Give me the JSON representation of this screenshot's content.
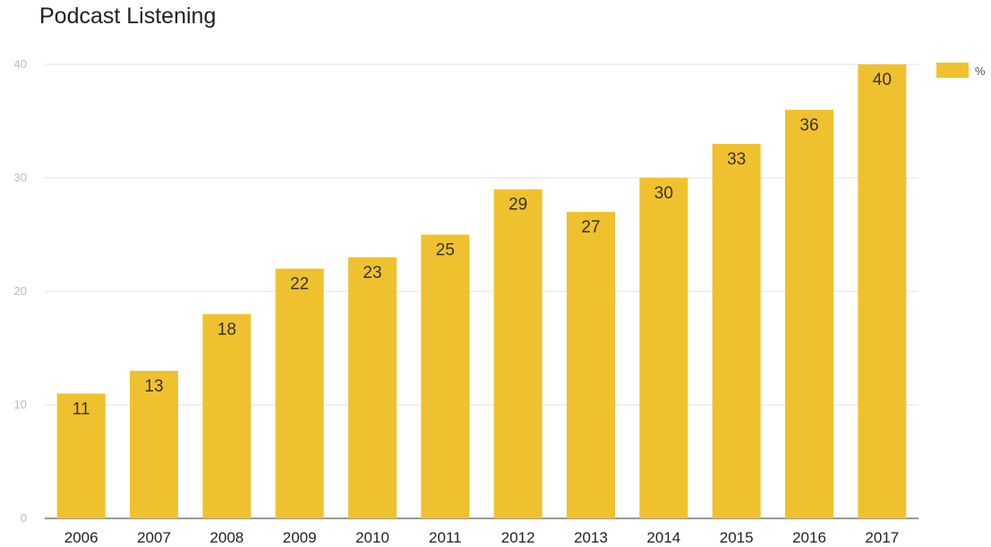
{
  "chart_data": {
    "type": "bar",
    "title": "Podcast Listening",
    "xlabel": "",
    "ylabel": "",
    "categories": [
      "2006",
      "2007",
      "2008",
      "2009",
      "2010",
      "2011",
      "2012",
      "2013",
      "2014",
      "2015",
      "2016",
      "2017"
    ],
    "series": [
      {
        "name": "%",
        "values": [
          11,
          13,
          18,
          22,
          23,
          25,
          29,
          27,
          30,
          33,
          36,
          40
        ],
        "color": "#f0c12e"
      }
    ],
    "ylim": [
      0,
      40
    ],
    "yticks": [
      0,
      10,
      20,
      30,
      40
    ],
    "grid": true,
    "data_labels": true,
    "legend_position": "top-right"
  }
}
